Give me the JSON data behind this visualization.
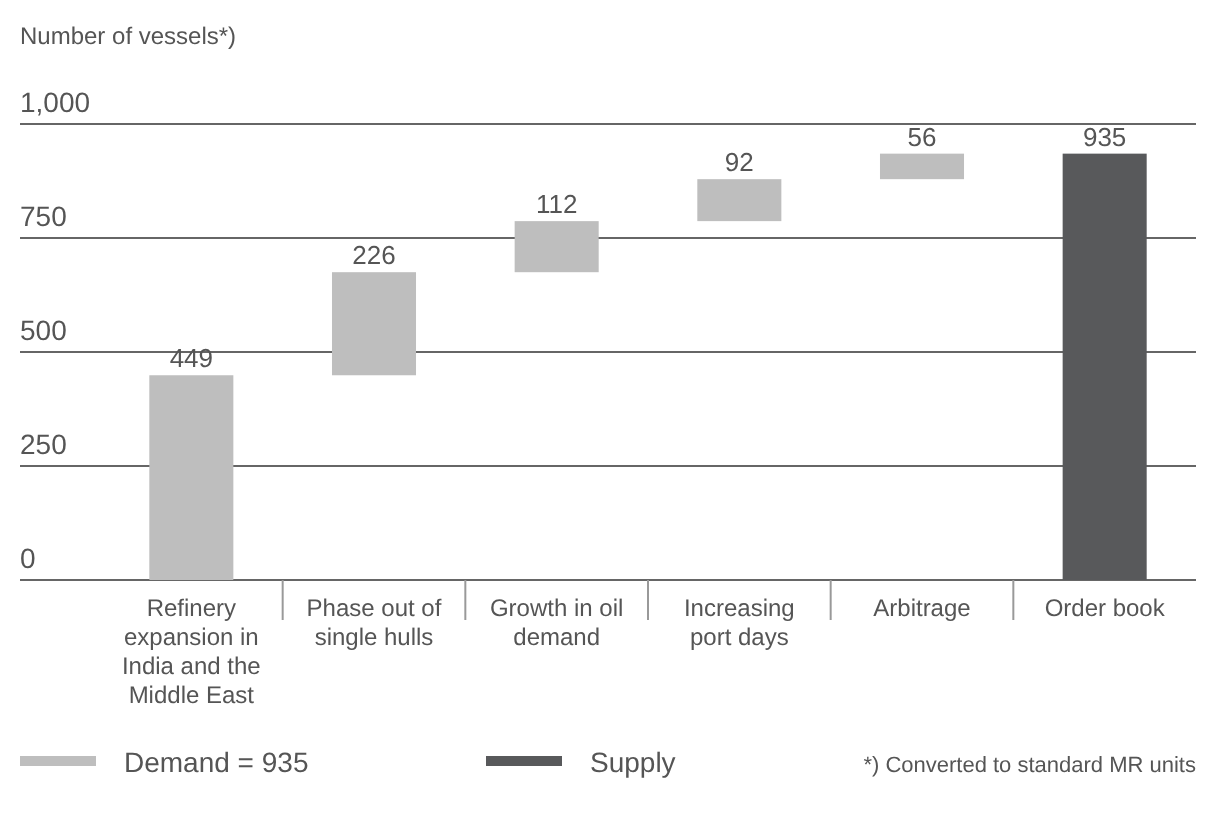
{
  "chart_data": {
    "type": "bar",
    "ylabel": "Number of vessels*)",
    "categories": [
      "Refinery expansion in India and the Middle East",
      "Phase out of single hulls",
      "Growth in oil demand",
      "Increasing port days",
      "Arbitrage",
      "Order book"
    ],
    "series": [
      {
        "name": "Demand = 935",
        "color": "#bebebe",
        "values": [
          449,
          226,
          112,
          92,
          56,
          null
        ],
        "base": [
          0,
          449,
          675,
          787,
          879,
          null
        ]
      },
      {
        "name": "Supply",
        "color": "#58595b",
        "values": [
          null,
          null,
          null,
          null,
          null,
          935
        ],
        "base": [
          null,
          null,
          null,
          null,
          null,
          0
        ]
      }
    ],
    "ylim": [
      0,
      1000
    ],
    "yticks": [
      0,
      250,
      500,
      750,
      {
        "value": 1000,
        "label": "1,000"
      }
    ],
    "grid": "y",
    "data_labels": true,
    "legend": "bottom",
    "annotations": [
      "*) Converted to standard MR units"
    ]
  }
}
